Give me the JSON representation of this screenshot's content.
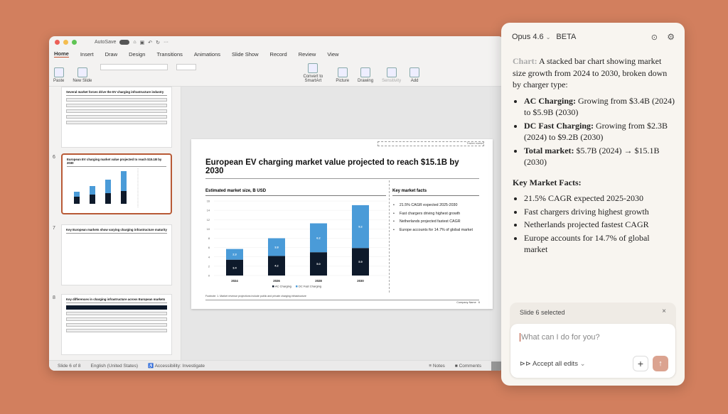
{
  "app": {
    "autosave": "AutoSave",
    "tabs": [
      "Home",
      "Insert",
      "Draw",
      "Design",
      "Transitions",
      "Animations",
      "Slide Show",
      "Record",
      "Review",
      "View"
    ],
    "ribbon": {
      "paste": "Paste",
      "new_slide": "New Slide",
      "convert": "Convert to SmartArt",
      "picture": "Picture",
      "drawing": "Drawing",
      "sensitivity": "Sensitivity",
      "add": "Add"
    }
  },
  "thumbnails": [
    {
      "number": "",
      "title": "Several market forces drive the EV charging infrastructure industry"
    },
    {
      "number": "6",
      "title": "European EV charging market value projected to reach $15.1B by 2030"
    },
    {
      "number": "7",
      "title": "Key European markets show varying charging infrastructure maturity"
    },
    {
      "number": "8",
      "title": "Key differences in charging infrastructure across European markets"
    }
  ],
  "slide": {
    "tag": "Tracker marker",
    "title": "European EV charging market value projected to reach $15.1B by 2030",
    "chart_heading": "Estimated market size, B USD",
    "facts_heading": "Key market facts",
    "facts": [
      "21.5% CAGR expected 2025-2030",
      "Fast chargers driving highest growth",
      "Netherlands projected fastest CAGR",
      "Europe accounts for 14.7% of global market"
    ],
    "footnote": "Footnote: 1. Market revenue projections include public and private charging infrastructure",
    "company": "Company Name",
    "page": "6"
  },
  "chart_data": {
    "type": "bar",
    "stacked": true,
    "categories": [
      "2024",
      "2026",
      "2028",
      "2030"
    ],
    "series": [
      {
        "name": "AC Charging",
        "values": [
          3.4,
          4.2,
          5.0,
          5.9
        ],
        "color": "#0e1a2b"
      },
      {
        "name": "DC Fast Charging",
        "values": [
          2.3,
          3.8,
          6.2,
          9.2
        ],
        "color": "#4a9bd8"
      }
    ],
    "ylim": [
      0,
      16
    ],
    "yticks": [
      "0",
      "2",
      "4",
      "6",
      "8",
      "10",
      "12",
      "14",
      "16"
    ],
    "grid": true,
    "legend": "bottom",
    "title": "Estimated market size, B USD"
  },
  "status": {
    "slide": "Slide 6 of 8",
    "language": "English (United States)",
    "accessibility": "Accessibility: Investigate",
    "notes": "Notes",
    "comments": "Comments"
  },
  "panel": {
    "model": "Opus 4.6",
    "badge": "BETA",
    "intro_label": "Chart:",
    "intro": " A stacked bar chart showing market size growth from 2024 to 2030, broken down by charger type:",
    "bullets": [
      {
        "b": "AC Charging:",
        "t": " Growing from $3.4B (2024) to $5.9B (2030)"
      },
      {
        "b": "DC Fast Charging:",
        "t": " Growing from $2.3B (2024) to $9.2B (2030)"
      },
      {
        "b": "Total market:",
        "t": " $5.7B (2024) → $15.1B (2030)"
      }
    ],
    "facts_heading": "Key Market Facts:",
    "facts": [
      "21.5% CAGR expected 2025-2030",
      "Fast chargers driving highest growth",
      "Netherlands projected fastest CAGR",
      "Europe accounts for 14.7% of global market"
    ],
    "context": "Slide 6 selected",
    "placeholder": "What can I do for you?",
    "accept": "Accept all edits"
  },
  "colors": {
    "background": "#d27f5e",
    "accent": "#c4502e",
    "send": "#dba390"
  }
}
